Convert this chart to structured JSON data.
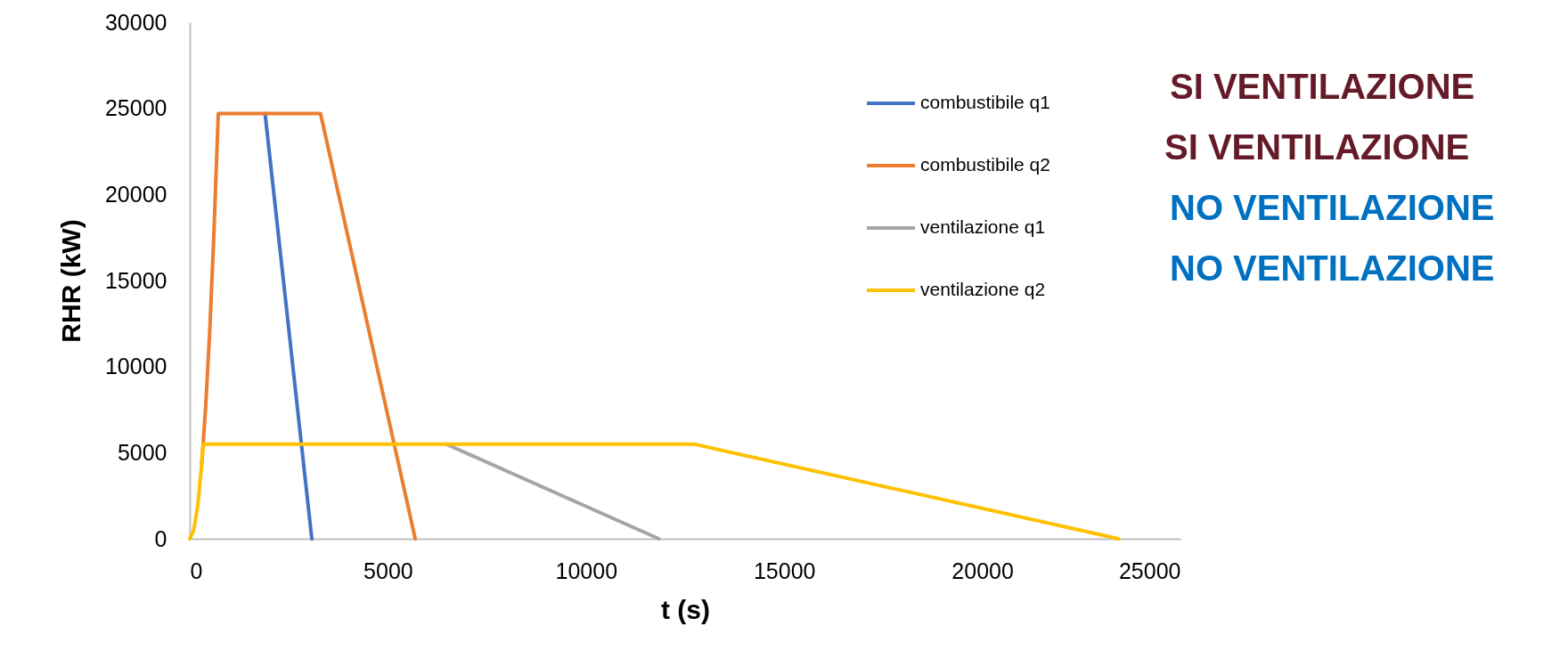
{
  "chart_data": {
    "type": "line",
    "xlabel": "t (s)",
    "ylabel": "RHR (kW)",
    "xlim": [
      0,
      25000
    ],
    "xticks": [
      0,
      5000,
      10000,
      15000,
      20000,
      25000
    ],
    "ylim": [
      0,
      30000
    ],
    "yticks": [
      0,
      5000,
      10000,
      15000,
      20000,
      25000,
      30000
    ],
    "grid": false,
    "legend": "top right",
    "marker": "none",
    "line_style": "solid",
    "series": [
      {
        "name": "combustibile q1",
        "color": "#4472c4",
        "x": [
          1900,
          3080
        ],
        "values": [
          24700,
          0
        ]
      },
      {
        "name": "combustibile q2",
        "color": "#ed7d31",
        "x": [
          300,
          400,
          500,
          600,
          720,
          3300,
          5690
        ],
        "values": [
          4300,
          7600,
          11900,
          17200,
          24700,
          24700,
          0
        ]
      },
      {
        "name": "ventilazione q1",
        "color": "#a5a5a5",
        "x": [
          6470,
          11840
        ],
        "values": [
          5500,
          0
        ]
      },
      {
        "name": "ventilazione q2",
        "color": "#ffc000",
        "x": [
          0,
          100,
          200,
          300,
          340,
          12720,
          23440
        ],
        "values": [
          0,
          480,
          1900,
          4300,
          5500,
          5500,
          0
        ]
      }
    ],
    "annotations": [
      "SI VENTILAZIONE",
      "SI VENTILAZIONE",
      "NO VENTILAZIONE",
      "NO VENTILAZIONE"
    ]
  }
}
